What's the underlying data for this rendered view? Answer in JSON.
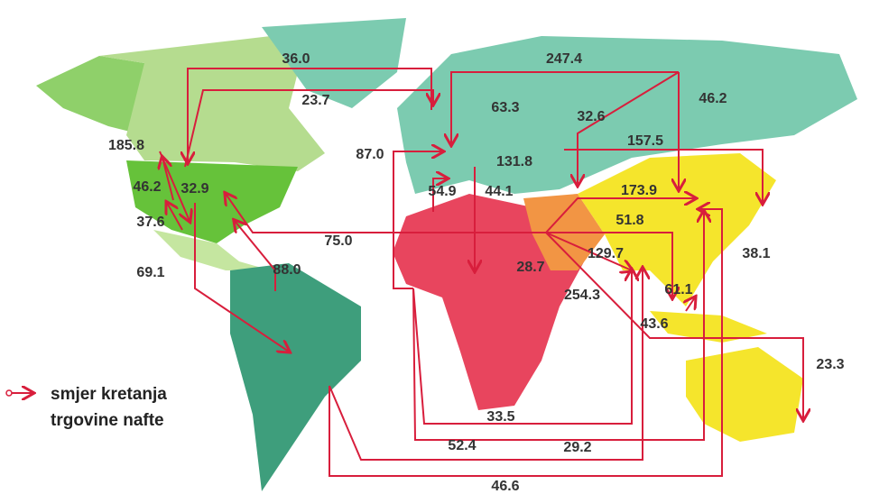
{
  "flows": [
    "36.0",
    "247.4",
    "46.2",
    "23.7",
    "63.3",
    "32.6",
    "157.5",
    "185.8",
    "87.0",
    "131.8",
    "46.2",
    "32.9",
    "54.9",
    "44.1",
    "173.9",
    "51.8",
    "37.6",
    "75.0",
    "129.7",
    "38.1",
    "28.7",
    "88.0",
    "69.1",
    "61.1",
    "254.3",
    "43.6",
    "23.3",
    "33.5",
    "52.4",
    "29.2",
    "46.6"
  ],
  "legend": [
    "smjer kretanja",
    "trgovine nafte"
  ]
}
